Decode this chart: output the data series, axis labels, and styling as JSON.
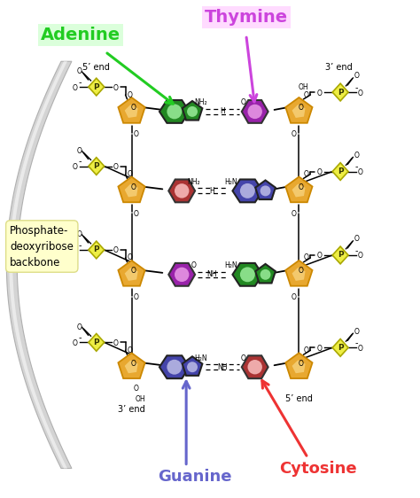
{
  "background_color": "#ffffff",
  "labels": {
    "adenine": "Adenine",
    "thymine": "Thymine",
    "guanine": "Guanine",
    "cytosine": "Cytosine",
    "backbone": "Phosphate-\ndeoxyribose\nbackbone"
  },
  "label_colors": {
    "adenine": "#22cc22",
    "thymine": "#cc44dd",
    "guanine": "#6666cc",
    "cytosine": "#ee3333"
  },
  "base_colors": {
    "adenine_dark": "#228822",
    "adenine_light": "#88dd88",
    "thymine_dark": "#aa22aa",
    "thymine_light": "#dd88dd",
    "guanine_dark": "#4444aa",
    "guanine_light": "#aaaadd",
    "cytosine_dark": "#aa4444",
    "cytosine_light": "#eeaaaa"
  },
  "sugar_color": "#e8a830",
  "sugar_edge": "#cc8800",
  "phosphate_color": "#eeee44",
  "phosphate_edge": "#aaa800",
  "backbone_gray": "#c0c0c0",
  "figsize": [
    4.74,
    5.62
  ],
  "dpi": 100
}
